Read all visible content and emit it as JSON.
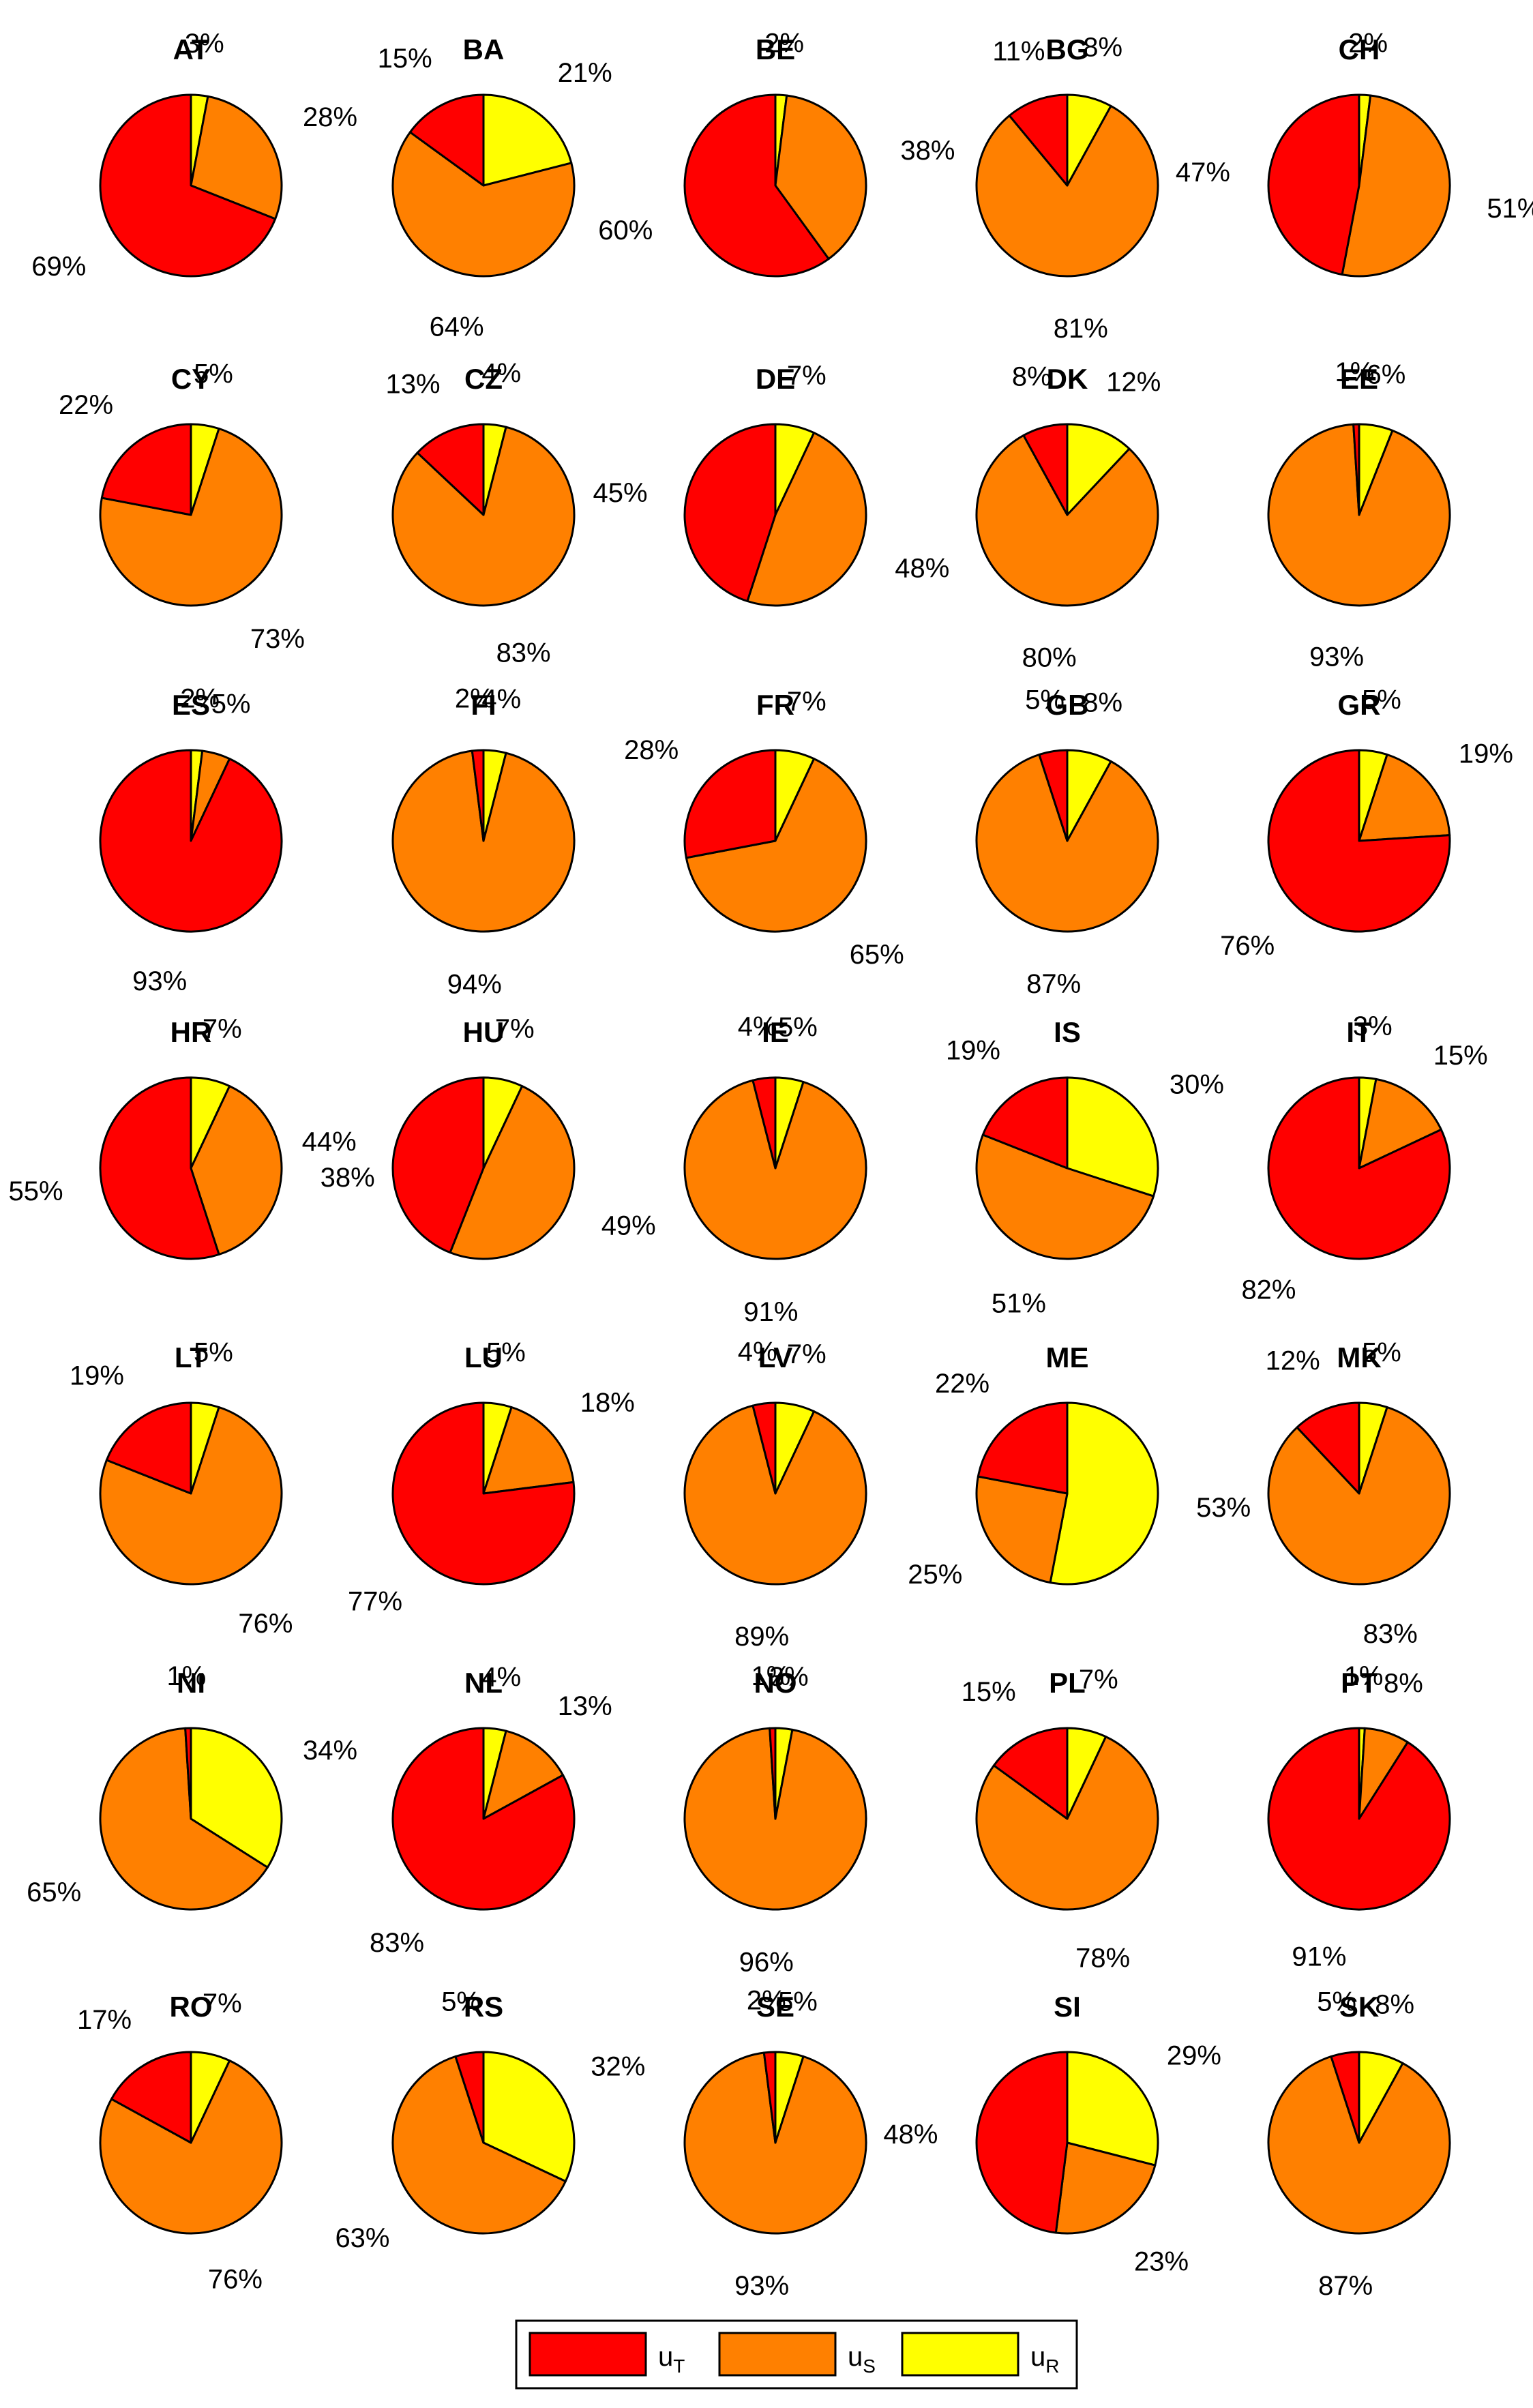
{
  "chart_data": {
    "type": "pie",
    "series_names": [
      "u_T",
      "u_S",
      "u_R"
    ],
    "colors": {
      "u_T": "#ff0000",
      "u_S": "#ff8000",
      "u_R": "#ffff00"
    },
    "legend": {
      "placement": "bottom-center",
      "entries": [
        {
          "base": "u",
          "sub": "T",
          "color": "#ff0000"
        },
        {
          "base": "u",
          "sub": "S",
          "color": "#ff8000"
        },
        {
          "base": "u",
          "sub": "R",
          "color": "#ffff00"
        }
      ]
    },
    "pies": [
      {
        "title": "AT",
        "u_T": 69,
        "u_S": 28,
        "u_R": 3
      },
      {
        "title": "BA",
        "u_T": 15,
        "u_S": 64,
        "u_R": 21
      },
      {
        "title": "BE",
        "u_T": 60,
        "u_S": 38,
        "u_R": 2
      },
      {
        "title": "BG",
        "u_T": 11,
        "u_S": 81,
        "u_R": 8
      },
      {
        "title": "CH",
        "u_T": 47,
        "u_S": 51,
        "u_R": 2
      },
      {
        "title": "CY",
        "u_T": 22,
        "u_S": 73,
        "u_R": 5
      },
      {
        "title": "CZ",
        "u_T": 13,
        "u_S": 83,
        "u_R": 4
      },
      {
        "title": "DE",
        "u_T": 45,
        "u_S": 48,
        "u_R": 7
      },
      {
        "title": "DK",
        "u_T": 8,
        "u_S": 80,
        "u_R": 12
      },
      {
        "title": "EE",
        "u_T": 1,
        "u_S": 93,
        "u_R": 6
      },
      {
        "title": "ES",
        "u_T": 93,
        "u_S": 5,
        "u_R": 2
      },
      {
        "title": "FI",
        "u_T": 2,
        "u_S": 94,
        "u_R": 4
      },
      {
        "title": "FR",
        "u_T": 28,
        "u_S": 65,
        "u_R": 7
      },
      {
        "title": "GB",
        "u_T": 5,
        "u_S": 87,
        "u_R": 8
      },
      {
        "title": "GR",
        "u_T": 76,
        "u_S": 19,
        "u_R": 5
      },
      {
        "title": "HR",
        "u_T": 55,
        "u_S": 38,
        "u_R": 7
      },
      {
        "title": "HU",
        "u_T": 44,
        "u_S": 49,
        "u_R": 7
      },
      {
        "title": "IE",
        "u_T": 4,
        "u_S": 91,
        "u_R": 5
      },
      {
        "title": "IS",
        "u_T": 19,
        "u_S": 51,
        "u_R": 30
      },
      {
        "title": "IT",
        "u_T": 82,
        "u_S": 15,
        "u_R": 3
      },
      {
        "title": "LT",
        "u_T": 19,
        "u_S": 76,
        "u_R": 5
      },
      {
        "title": "LU",
        "u_T": 77,
        "u_S": 18,
        "u_R": 5
      },
      {
        "title": "LV",
        "u_T": 4,
        "u_S": 89,
        "u_R": 7
      },
      {
        "title": "ME",
        "u_T": 22,
        "u_S": 25,
        "u_R": 53
      },
      {
        "title": "MK",
        "u_T": 12,
        "u_S": 83,
        "u_R": 5
      },
      {
        "title": "NI",
        "u_T": 1,
        "u_S": 65,
        "u_R": 34
      },
      {
        "title": "NL",
        "u_T": 83,
        "u_S": 13,
        "u_R": 4
      },
      {
        "title": "NO",
        "u_T": 1,
        "u_S": 96,
        "u_R": 3
      },
      {
        "title": "PL",
        "u_T": 15,
        "u_S": 78,
        "u_R": 7
      },
      {
        "title": "PT",
        "u_T": 91,
        "u_S": 8,
        "u_R": 1
      },
      {
        "title": "RO",
        "u_T": 17,
        "u_S": 76,
        "u_R": 7
      },
      {
        "title": "RS",
        "u_T": 5,
        "u_S": 63,
        "u_R": 32
      },
      {
        "title": "SE",
        "u_T": 2,
        "u_S": 93,
        "u_R": 5
      },
      {
        "title": "SI",
        "u_T": 48,
        "u_S": 23,
        "u_R": 29
      },
      {
        "title": "SK",
        "u_T": 5,
        "u_S": 87,
        "u_R": 8
      }
    ]
  }
}
